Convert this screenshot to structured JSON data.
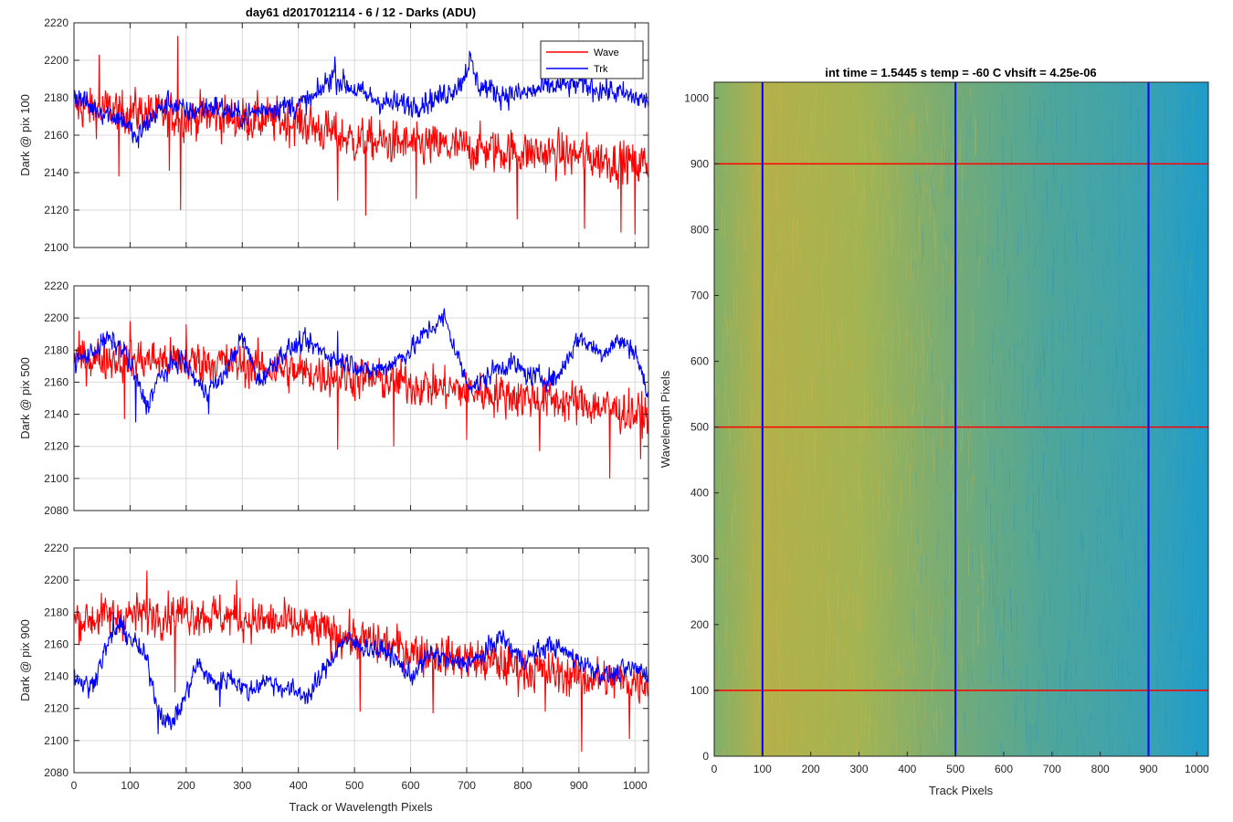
{
  "figure": {
    "title_left": "day61 d2017012114 - 6 / 12 - Darks (ADU)",
    "title_right": "int time = 1.5445 s    temp = -60 C    vhsift = 4.25e-06"
  },
  "colors": {
    "wave": "#ff0000",
    "trk": "#0000ff",
    "grid": "#d9d9d9",
    "axes": "#262626",
    "map_low": "#1a9ed0",
    "map_high": "#c8b44a"
  },
  "chart_data": [
    {
      "type": "line",
      "id": "pix100",
      "title": "day61 d2017012114 - 6 / 12 - Darks (ADU)",
      "xlabel": "",
      "ylabel": "Dark @ pix 100",
      "xlim": [
        0,
        1024
      ],
      "ylim": [
        2100,
        2220
      ],
      "xticks": [
        0,
        100,
        200,
        300,
        400,
        500,
        600,
        700,
        800,
        900,
        1000
      ],
      "xtick_labels": [
        "",
        "",
        "",
        "",
        "",
        "",
        "",
        "",
        "",
        "",
        ""
      ],
      "yticks": [
        2100,
        2120,
        2140,
        2160,
        2180,
        2200,
        2220
      ],
      "grid": true,
      "legend": {
        "position": "top-right",
        "entries": [
          "Wave",
          "Trk"
        ]
      },
      "series": [
        {
          "name": "Wave",
          "color": "#ff0000",
          "x": [
            0,
            50,
            100,
            150,
            200,
            250,
            300,
            350,
            400,
            450,
            500,
            550,
            600,
            650,
            700,
            750,
            800,
            850,
            900,
            950,
            1000,
            1024
          ],
          "y": [
            2175,
            2174,
            2173,
            2171,
            2170,
            2170,
            2169,
            2168,
            2167,
            2162,
            2157,
            2156,
            2155,
            2154,
            2153,
            2152,
            2151,
            2150,
            2149,
            2147,
            2145,
            2145
          ],
          "noise": 9,
          "spikes": [
            [
              45,
              2203
            ],
            [
              185,
              2213
            ],
            [
              190,
              2120
            ],
            [
              80,
              2138
            ],
            [
              170,
              2141
            ],
            [
              470,
              2125
            ],
            [
              520,
              2117
            ],
            [
              610,
              2126
            ],
            [
              790,
              2115
            ],
            [
              910,
              2110
            ],
            [
              975,
              2108
            ],
            [
              1000,
              2107
            ]
          ]
        },
        {
          "name": "Trk",
          "color": "#0000ff",
          "x": [
            0,
            30,
            60,
            90,
            110,
            140,
            170,
            200,
            250,
            300,
            350,
            400,
            430,
            460,
            480,
            520,
            560,
            600,
            650,
            690,
            705,
            720,
            760,
            800,
            850,
            900,
            950,
            1000,
            1024
          ],
          "y": [
            2182,
            2175,
            2172,
            2168,
            2158,
            2170,
            2178,
            2172,
            2176,
            2170,
            2175,
            2176,
            2180,
            2192,
            2188,
            2181,
            2177,
            2176,
            2180,
            2188,
            2200,
            2187,
            2182,
            2182,
            2186,
            2187,
            2184,
            2180,
            2178
          ],
          "noise": 5,
          "spikes": [
            [
              705,
              2205
            ],
            [
              465,
              2202
            ],
            [
              115,
              2153
            ]
          ]
        }
      ]
    },
    {
      "type": "line",
      "id": "pix500",
      "title": "",
      "xlabel": "",
      "ylabel": "Dark @ pix 500",
      "xlim": [
        0,
        1024
      ],
      "ylim": [
        2080,
        2220
      ],
      "xticks": [
        0,
        100,
        200,
        300,
        400,
        500,
        600,
        700,
        800,
        900,
        1000
      ],
      "xtick_labels": [
        "",
        "",
        "",
        "",
        "",
        "",
        "",
        "",
        "",
        "",
        ""
      ],
      "yticks": [
        2080,
        2100,
        2120,
        2140,
        2160,
        2180,
        2200,
        2220
      ],
      "grid": true,
      "series": [
        {
          "name": "Wave",
          "color": "#ff0000",
          "x": [
            0,
            50,
            100,
            150,
            200,
            250,
            300,
            350,
            400,
            450,
            500,
            550,
            600,
            650,
            700,
            750,
            800,
            850,
            900,
            950,
            1000,
            1024
          ],
          "y": [
            2175,
            2175,
            2174,
            2174,
            2173,
            2173,
            2171,
            2169,
            2166,
            2165,
            2163,
            2161,
            2159,
            2156,
            2155,
            2153,
            2151,
            2149,
            2147,
            2144,
            2140,
            2140
          ],
          "noise": 10,
          "spikes": [
            [
              100,
              2198
            ],
            [
              200,
              2196
            ],
            [
              470,
              2118
            ],
            [
              570,
              2120
            ],
            [
              700,
              2124
            ],
            [
              830,
              2117
            ],
            [
              955,
              2100
            ],
            [
              1010,
              2112
            ],
            [
              90,
              2137
            ]
          ]
        },
        {
          "name": "Trk",
          "color": "#0000ff",
          "x": [
            0,
            30,
            60,
            90,
            110,
            130,
            150,
            190,
            230,
            260,
            300,
            330,
            370,
            410,
            440,
            470,
            500,
            520,
            560,
            600,
            630,
            660,
            700,
            720,
            750,
            780,
            810,
            860,
            900,
            940,
            970,
            1000,
            1024
          ],
          "y": [
            2172,
            2178,
            2187,
            2180,
            2162,
            2145,
            2162,
            2175,
            2155,
            2160,
            2188,
            2160,
            2178,
            2185,
            2180,
            2173,
            2172,
            2166,
            2170,
            2180,
            2192,
            2200,
            2160,
            2158,
            2168,
            2172,
            2164,
            2162,
            2188,
            2178,
            2186,
            2180,
            2150
          ],
          "noise": 5,
          "spikes": [
            [
              660,
              2206
            ],
            [
              110,
              2135
            ],
            [
              240,
              2140
            ],
            [
              470,
              2192
            ]
          ]
        }
      ]
    },
    {
      "type": "line",
      "id": "pix900",
      "title": "",
      "xlabel": "Track or Wavelength Pixels",
      "ylabel": "Dark @ pix 900",
      "xlim": [
        0,
        1024
      ],
      "ylim": [
        2080,
        2220
      ],
      "xticks": [
        0,
        100,
        200,
        300,
        400,
        500,
        600,
        700,
        800,
        900,
        1000
      ],
      "xtick_labels": [
        "0",
        "100",
        "200",
        "300",
        "400",
        "500",
        "600",
        "700",
        "800",
        "900",
        "1000"
      ],
      "yticks": [
        2080,
        2100,
        2120,
        2140,
        2160,
        2180,
        2200,
        2220
      ],
      "grid": true,
      "series": [
        {
          "name": "Wave",
          "color": "#ff0000",
          "x": [
            0,
            50,
            100,
            150,
            200,
            250,
            300,
            350,
            400,
            450,
            500,
            550,
            600,
            650,
            700,
            750,
            800,
            850,
            900,
            950,
            1000,
            1024
          ],
          "y": [
            2175,
            2177,
            2178,
            2179,
            2180,
            2178,
            2176,
            2174,
            2172,
            2168,
            2164,
            2160,
            2156,
            2153,
            2151,
            2148,
            2145,
            2142,
            2140,
            2138,
            2137,
            2137
          ],
          "noise": 10,
          "spikes": [
            [
              130,
              2206
            ],
            [
              180,
              2130
            ],
            [
              290,
              2200
            ],
            [
              510,
              2118
            ],
            [
              640,
              2117
            ],
            [
              905,
              2093
            ],
            [
              990,
              2101
            ],
            [
              840,
              2118
            ]
          ]
        },
        {
          "name": "Trk",
          "color": "#0000ff",
          "x": [
            0,
            30,
            60,
            80,
            110,
            130,
            150,
            170,
            190,
            220,
            250,
            280,
            310,
            340,
            380,
            420,
            460,
            480,
            520,
            560,
            600,
            640,
            680,
            720,
            760,
            800,
            850,
            900,
            950,
            1000,
            1024
          ],
          "y": [
            2140,
            2133,
            2160,
            2172,
            2160,
            2150,
            2120,
            2110,
            2120,
            2148,
            2135,
            2140,
            2130,
            2138,
            2132,
            2128,
            2152,
            2163,
            2158,
            2155,
            2140,
            2155,
            2148,
            2150,
            2165,
            2150,
            2160,
            2150,
            2140,
            2145,
            2142
          ],
          "noise": 5,
          "spikes": [
            [
              70,
              2180
            ],
            [
              150,
              2104
            ],
            [
              260,
              2121
            ]
          ]
        }
      ]
    },
    {
      "type": "heatmap",
      "id": "dark-frame",
      "title": "int time = 1.5445 s    temp = -60 C    vhsift = 4.25e-06",
      "xlabel": "Track Pixels",
      "ylabel": "Wavelength Pixels",
      "xlim": [
        0,
        1024
      ],
      "ylim": [
        0,
        1024
      ],
      "xticks": [
        0,
        100,
        200,
        300,
        400,
        500,
        600,
        700,
        800,
        900,
        1000
      ],
      "yticks": [
        0,
        100,
        200,
        300,
        400,
        500,
        600,
        700,
        800,
        900,
        1000
      ],
      "marker_columns": [
        100,
        500,
        900
      ],
      "marker_rows": [
        100,
        500,
        900
      ],
      "marker_column_color": "#0000ff",
      "marker_row_color": "#ff0000",
      "gradient_stops": [
        {
          "x": 0,
          "color": "#7fb06a"
        },
        {
          "x": 100,
          "color": "#b5b04a"
        },
        {
          "x": 300,
          "color": "#a3b452"
        },
        {
          "x": 500,
          "color": "#74ab78"
        },
        {
          "x": 700,
          "color": "#4ea69b"
        },
        {
          "x": 900,
          "color": "#3aa2b3"
        },
        {
          "x": 1024,
          "color": "#1d9ccc"
        }
      ]
    }
  ]
}
